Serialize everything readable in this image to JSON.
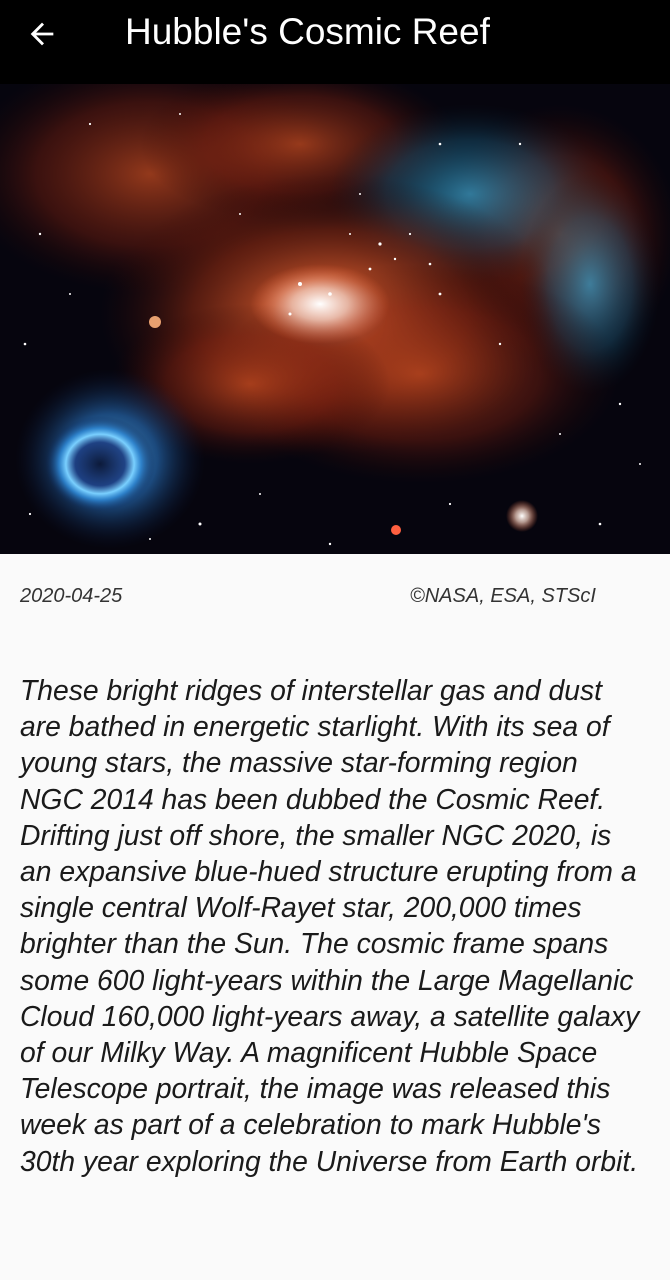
{
  "header": {
    "title": "Hubble's Cosmic Reef",
    "back_icon": "arrow-left-icon"
  },
  "image": {
    "subject": "nebula-photo"
  },
  "meta": {
    "date": "2020-04-25",
    "credit": "©NASA, ESA, STScI"
  },
  "description": "These bright ridges of interstellar gas and dust are bathed in energetic starlight. With its sea of young stars, the massive star-forming region NGC 2014 has been dubbed the Cosmic Reef. Drifting just off shore, the smaller NGC 2020, is an expansive blue-hued structure erupting from a single central Wolf-Rayet star, 200,000 times brighter than the Sun. The cosmic frame spans some 600 light-years within the Large Magellanic Cloud 160,000 light-years away, a satellite galaxy of our Milky Way. A magnificent Hubble Space Telescope portrait, the image was released this week as part of a celebration to mark Hubble's 30th year exploring the Universe from Earth orbit.",
  "colors": {
    "app_bar": "#000000",
    "background": "#fafafa",
    "text": "#1a1a1a",
    "nebula_red": "#b8421c",
    "nebula_blue": "#2a8fd8"
  }
}
